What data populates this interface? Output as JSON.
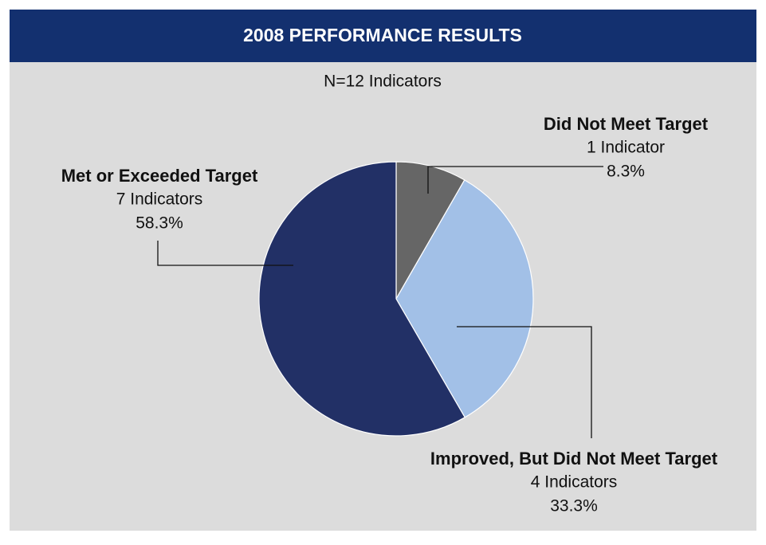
{
  "chart_data": {
    "type": "pie",
    "title": "2008 PERFORMANCE RESULTS",
    "subtitle": "N=12 Indicators",
    "categories": [
      "Did Not Meet Target",
      "Improved, But Did Not Meet Target",
      "Met or Exceeded Target"
    ],
    "count_labels": [
      "1 Indicator",
      "4 Indicators",
      "7 Indicators"
    ],
    "values": [
      8.3,
      33.3,
      58.3
    ],
    "value_labels": [
      "8.3%",
      "33.3%",
      "58.3%"
    ],
    "colors": [
      "#666666",
      "#a2c0e7",
      "#223066"
    ]
  }
}
